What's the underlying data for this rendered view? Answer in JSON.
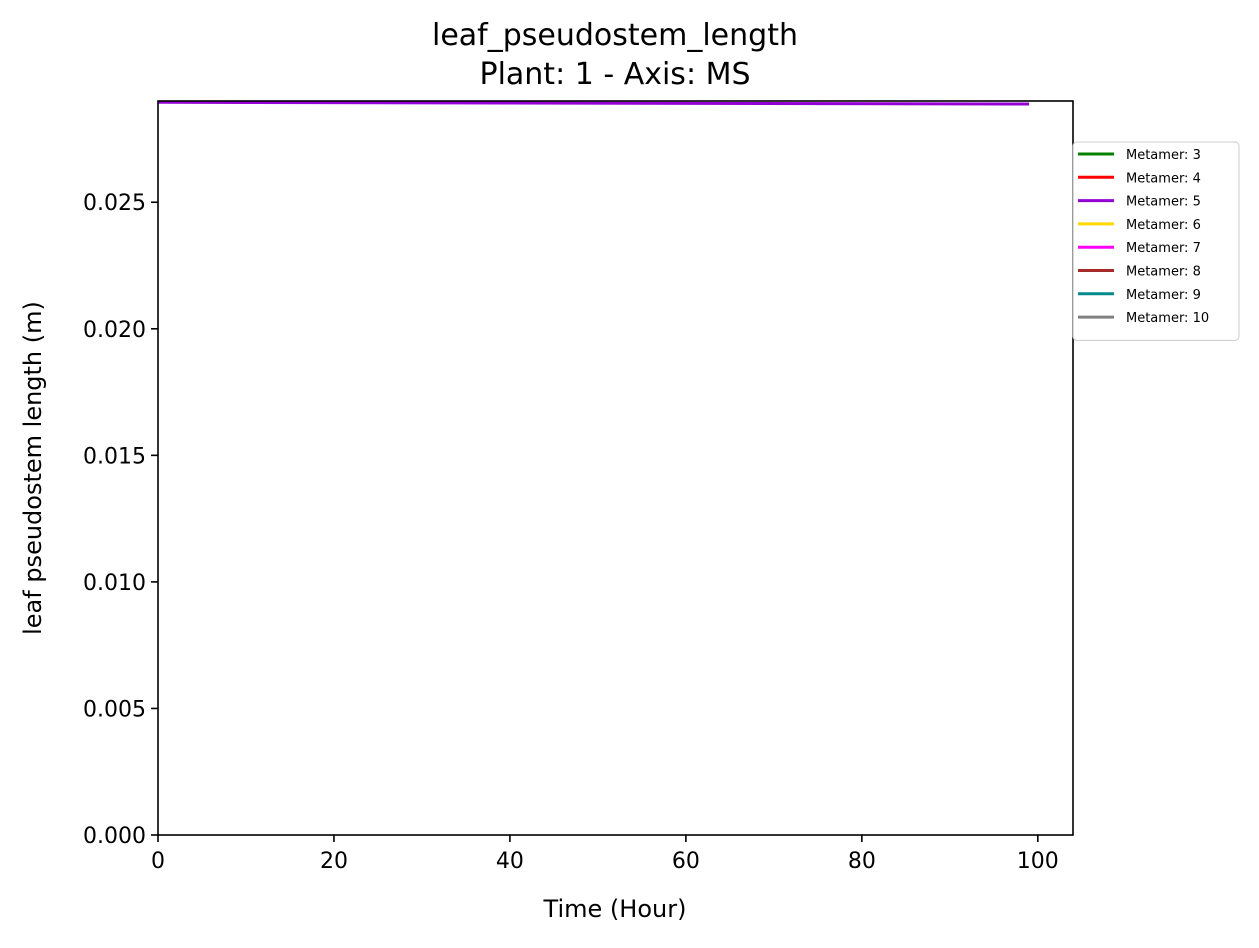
{
  "chart_data": {
    "type": "line",
    "title": "leaf_pseudostem_length",
    "subtitle": "Plant: 1 - Axis: MS",
    "xlabel": "Time (Hour)",
    "ylabel": "leaf pseudostem length (m)",
    "xlim": [
      0,
      104
    ],
    "ylim": [
      0,
      0.029
    ],
    "x_ticks": [
      0,
      20,
      40,
      60,
      80,
      100
    ],
    "x_tick_labels": [
      "0",
      "20",
      "40",
      "60",
      "80",
      "100"
    ],
    "y_ticks": [
      0,
      0.005,
      0.01,
      0.015,
      0.02,
      0.025
    ],
    "y_tick_labels": [
      "0.000",
      "0.005",
      "0.010",
      "0.015",
      "0.020",
      "0.025"
    ],
    "grid": false,
    "legend_position": "outside-right-top",
    "series": [
      {
        "name": "Metamer: 3",
        "color": "#008000",
        "x": [],
        "y": []
      },
      {
        "name": "Metamer: 4",
        "color": "#ff0000",
        "x": [],
        "y": []
      },
      {
        "name": "Metamer: 5",
        "color": "#9400d3",
        "x": [
          0,
          99
        ],
        "y": [
          0.02895,
          0.02888
        ]
      },
      {
        "name": "Metamer: 6",
        "color": "#ffd700",
        "x": [],
        "y": []
      },
      {
        "name": "Metamer: 7",
        "color": "#ff00ff",
        "x": [],
        "y": []
      },
      {
        "name": "Metamer: 8",
        "color": "#a52a2a",
        "x": [],
        "y": []
      },
      {
        "name": "Metamer: 9",
        "color": "#008b8b",
        "x": [],
        "y": []
      },
      {
        "name": "Metamer: 10",
        "color": "#808080",
        "x": [],
        "y": []
      }
    ]
  }
}
